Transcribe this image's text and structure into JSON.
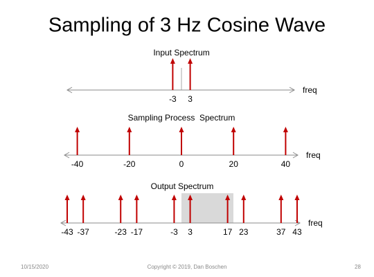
{
  "title": "Sampling of 3 Hz Cosine Wave",
  "panels": [
    {
      "title": "Input Spectrum",
      "axis_label": "freq",
      "impulses": [
        -3,
        3
      ]
    },
    {
      "title": "Sampling Process  Spectrum",
      "axis_label": "freq",
      "impulses": [
        -40,
        -20,
        0,
        20,
        40
      ]
    },
    {
      "title": "Output Spectrum",
      "axis_label": "freq",
      "impulses": [
        -43,
        -37,
        -23,
        -17,
        -3,
        3,
        17,
        23,
        37,
        43
      ]
    }
  ],
  "footer": {
    "date": "10/15/2020",
    "copyright": "Copyright © 2019, Dan Boschen",
    "page": "28"
  }
}
